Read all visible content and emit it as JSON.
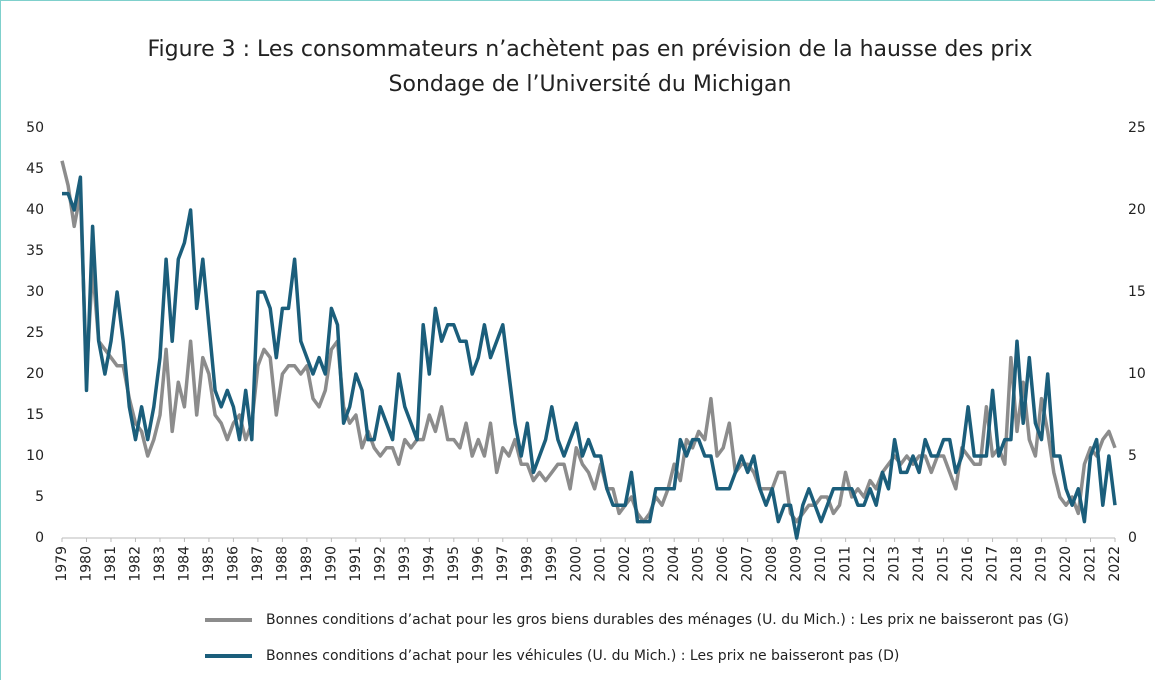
{
  "chart_data": {
    "type": "line",
    "title": "Figure 3 : Les consommateurs n’achètent pas en prévision de la hausse des prix",
    "subtitle": "Sondage de l’Université du Michigan",
    "legend": "bottom",
    "xlim": [
      1979,
      2022
    ],
    "xticks": [
      1979,
      1980,
      1981,
      1982,
      1983,
      1984,
      1985,
      1986,
      1987,
      1988,
      1989,
      1990,
      1991,
      1992,
      1993,
      1994,
      1995,
      1996,
      1997,
      1998,
      1999,
      2000,
      2001,
      2002,
      2003,
      2004,
      2005,
      2006,
      2007,
      2008,
      2009,
      2010,
      2011,
      2012,
      2013,
      2014,
      2015,
      2016,
      2017,
      2018,
      2019,
      2020,
      2021,
      2022
    ],
    "ylim": [
      0,
      50
    ],
    "yticks": [
      0,
      5,
      10,
      15,
      20,
      25,
      30,
      35,
      40,
      45,
      50
    ],
    "y2lim": [
      0,
      25
    ],
    "y2ticks": [
      0,
      5,
      10,
      15,
      20,
      25
    ],
    "x": [
      1979,
      1979.25,
      1979.5,
      1979.75,
      1980,
      1980.25,
      1980.5,
      1980.75,
      1981,
      1981.25,
      1981.5,
      1981.75,
      1982,
      1982.25,
      1982.5,
      1982.75,
      1983,
      1983.25,
      1983.5,
      1983.75,
      1984,
      1984.25,
      1984.5,
      1984.75,
      1985,
      1985.25,
      1985.5,
      1985.75,
      1986,
      1986.25,
      1986.5,
      1986.75,
      1987,
      1987.25,
      1987.5,
      1987.75,
      1988,
      1988.25,
      1988.5,
      1988.75,
      1989,
      1989.25,
      1989.5,
      1989.75,
      1990,
      1990.25,
      1990.5,
      1990.75,
      1991,
      1991.25,
      1991.5,
      1991.75,
      1992,
      1992.25,
      1992.5,
      1992.75,
      1993,
      1993.25,
      1993.5,
      1993.75,
      1994,
      1994.25,
      1994.5,
      1994.75,
      1995,
      1995.25,
      1995.5,
      1995.75,
      1996,
      1996.25,
      1996.5,
      1996.75,
      1997,
      1997.25,
      1997.5,
      1997.75,
      1998,
      1998.25,
      1998.5,
      1998.75,
      1999,
      1999.25,
      1999.5,
      1999.75,
      2000,
      2000.25,
      2000.5,
      2000.75,
      2001,
      2001.25,
      2001.5,
      2001.75,
      2002,
      2002.25,
      2002.5,
      2002.75,
      2003,
      2003.25,
      2003.5,
      2003.75,
      2004,
      2004.25,
      2004.5,
      2004.75,
      2005,
      2005.25,
      2005.5,
      2005.75,
      2006,
      2006.25,
      2006.5,
      2006.75,
      2007,
      2007.25,
      2007.5,
      2007.75,
      2008,
      2008.25,
      2008.5,
      2008.75,
      2009,
      2009.25,
      2009.5,
      2009.75,
      2010,
      2010.25,
      2010.5,
      2010.75,
      2011,
      2011.25,
      2011.5,
      2011.75,
      2012,
      2012.25,
      2012.5,
      2012.75,
      2013,
      2013.25,
      2013.5,
      2013.75,
      2014,
      2014.25,
      2014.5,
      2014.75,
      2015,
      2015.25,
      2015.5,
      2015.75,
      2016,
      2016.25,
      2016.5,
      2016.75,
      2017,
      2017.25,
      2017.5,
      2017.75,
      2018,
      2018.25,
      2018.5,
      2018.75,
      2019,
      2019.25,
      2019.5,
      2019.75,
      2020,
      2020.25,
      2020.5,
      2020.75,
      2021,
      2021.25,
      2021.5,
      2021.75,
      2022
    ],
    "series": [
      {
        "name": "Bonnes conditions d’achat pour les gros biens durables des ménages (U. du Mich.) : Les prix ne baisseront pas (G)",
        "color": "#8c8c8c",
        "axis": "y",
        "values": [
          46,
          43,
          38,
          42,
          20,
          33,
          24,
          23,
          22,
          21,
          21,
          17,
          14,
          13,
          10,
          12,
          15,
          23,
          13,
          19,
          16,
          24,
          15,
          22,
          20,
          15,
          14,
          12,
          14,
          15,
          12,
          14,
          21,
          23,
          22,
          15,
          20,
          21,
          21,
          20,
          21,
          17,
          16,
          18,
          23,
          24,
          16,
          14,
          15,
          11,
          13,
          11,
          10,
          11,
          11,
          9,
          12,
          11,
          12,
          12,
          15,
          13,
          16,
          12,
          12,
          11,
          14,
          10,
          12,
          10,
          14,
          8,
          11,
          10,
          12,
          9,
          9,
          7,
          8,
          7,
          8,
          9,
          9,
          6,
          11,
          9,
          8,
          6,
          9,
          6,
          6,
          3,
          4,
          5,
          3,
          2,
          3,
          5,
          4,
          6,
          9,
          7,
          12,
          11,
          13,
          12,
          17,
          10,
          11,
          14,
          8,
          9,
          9,
          8,
          6,
          6,
          6,
          8,
          8,
          3,
          2,
          3,
          4,
          4,
          5,
          5,
          3,
          4,
          8,
          5,
          6,
          5,
          7,
          6,
          8,
          9,
          10,
          9,
          10,
          9,
          10,
          10,
          8,
          10,
          10,
          8,
          6,
          11,
          10,
          9,
          9,
          16,
          10,
          11,
          9,
          22,
          13,
          19,
          12,
          10,
          17,
          13,
          8,
          5,
          4,
          5,
          3,
          9,
          11,
          10,
          12,
          13,
          11
        ]
      },
      {
        "name": "Bonnes conditions d’achat pour les véhicules (U. du Mich.) : Les prix ne baisseront pas (D)",
        "color": "#1b5e7b",
        "axis": "y2",
        "values": [
          21,
          21,
          20,
          22,
          9,
          19,
          12,
          10,
          12,
          15,
          12,
          8,
          6,
          8,
          6,
          8,
          11,
          17,
          12,
          17,
          18,
          20,
          14,
          17,
          13,
          9,
          8,
          9,
          8,
          6,
          9,
          6,
          15,
          15,
          14,
          11,
          14,
          14,
          17,
          12,
          11,
          10,
          11,
          10,
          14,
          13,
          7,
          8,
          10,
          9,
          6,
          6,
          8,
          7,
          6,
          10,
          8,
          7,
          6,
          13,
          10,
          14,
          12,
          13,
          13,
          12,
          12,
          10,
          11,
          13,
          11,
          12,
          13,
          10,
          7,
          5,
          7,
          4,
          5,
          6,
          8,
          6,
          5,
          6,
          7,
          5,
          6,
          5,
          5,
          3,
          2,
          2,
          2,
          4,
          1,
          1,
          1,
          3,
          3,
          3,
          3,
          6,
          5,
          6,
          6,
          5,
          5,
          3,
          3,
          3,
          4,
          5,
          4,
          5,
          3,
          2,
          3,
          1,
          2,
          2,
          0,
          2,
          3,
          2,
          1,
          2,
          3,
          3,
          3,
          3,
          2,
          2,
          3,
          2,
          4,
          3,
          6,
          4,
          4,
          5,
          4,
          6,
          5,
          5,
          6,
          6,
          4,
          5,
          8,
          5,
          5,
          5,
          9,
          5,
          6,
          6,
          12,
          7,
          11,
          7,
          6,
          10,
          5,
          5,
          3,
          2,
          3,
          1,
          5,
          6,
          2,
          5,
          2
        ]
      }
    ]
  }
}
